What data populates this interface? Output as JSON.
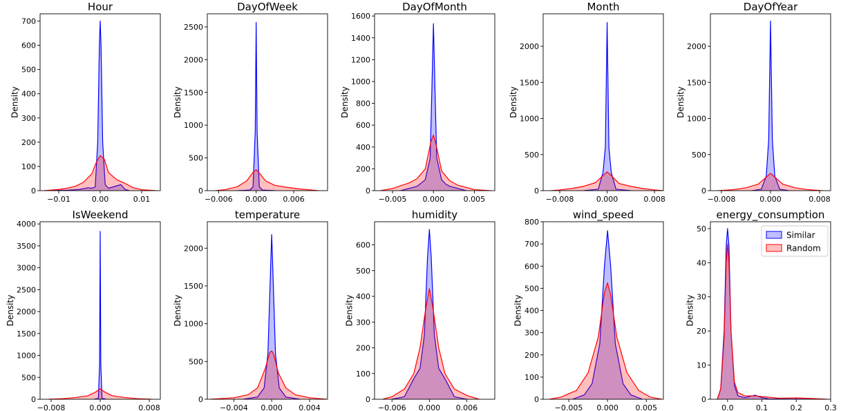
{
  "legend": {
    "placement": "top-right of energy_consumption panel",
    "entries": [
      {
        "label": "Similar",
        "color": "#0000ff"
      },
      {
        "label": "Random",
        "color": "#ff0000"
      }
    ]
  },
  "chart_data": [
    {
      "type": "area",
      "title": "Hour",
      "xlabel": "",
      "ylabel": "Density",
      "xlim": [
        -0.0145,
        0.0145
      ],
      "ylim": [
        0,
        730
      ],
      "xticks": [
        -0.01,
        0,
        0.01
      ],
      "xtick_labels": [
        "−0.01",
        "0.00",
        "0.01"
      ],
      "yticks": [
        0,
        100,
        200,
        300,
        400,
        500,
        600,
        700
      ],
      "ytick_labels": [
        "0",
        "100",
        "200",
        "300",
        "400",
        "500",
        "600",
        "700"
      ],
      "series": [
        {
          "name": "Similar",
          "x": [
            -0.013,
            -0.008,
            -0.005,
            -0.003,
            -0.002,
            -0.0012,
            -0.0006,
            -0.0002,
            0,
            0.0002,
            0.0006,
            0.0012,
            0.002,
            0.003,
            0.004,
            0.005,
            0.006,
            0.007
          ],
          "y": [
            0,
            2,
            5,
            12,
            10,
            15,
            200,
            600,
            700,
            600,
            200,
            25,
            10,
            15,
            20,
            25,
            5,
            0
          ]
        },
        {
          "name": "Random",
          "x": [
            -0.0135,
            -0.01,
            -0.008,
            -0.006,
            -0.004,
            -0.002,
            -0.001,
            0,
            0.001,
            0.002,
            0.004,
            0.006,
            0.008,
            0.01,
            0.0135
          ],
          "y": [
            0,
            5,
            10,
            18,
            35,
            70,
            115,
            145,
            130,
            75,
            45,
            30,
            12,
            4,
            0
          ]
        }
      ]
    },
    {
      "type": "area",
      "title": "DayOfWeek",
      "xlabel": "",
      "ylabel": "Density",
      "xlim": [
        -0.0078,
        0.0114
      ],
      "ylim": [
        0,
        2700
      ],
      "xticks": [
        -0.006,
        0,
        0.006
      ],
      "xtick_labels": [
        "−0.006",
        "0.000",
        "0.006"
      ],
      "yticks": [
        0,
        500,
        1000,
        1500,
        2000,
        2500
      ],
      "ytick_labels": [
        "0",
        "500",
        "1000",
        "1500",
        "2000",
        "2500"
      ],
      "series": [
        {
          "name": "Similar",
          "x": [
            -0.003,
            -0.001,
            -0.0005,
            -0.00015,
            0,
            0.00015,
            0.0005,
            0.001,
            0.003
          ],
          "y": [
            0,
            10,
            60,
            900,
            2570,
            900,
            60,
            10,
            0
          ]
        },
        {
          "name": "Random",
          "x": [
            -0.0065,
            -0.005,
            -0.003,
            -0.0015,
            -0.0005,
            0,
            0.0005,
            0.0015,
            0.003,
            0.005,
            0.007,
            0.01
          ],
          "y": [
            0,
            15,
            60,
            150,
            280,
            320,
            270,
            150,
            80,
            50,
            25,
            0
          ]
        }
      ]
    },
    {
      "type": "area",
      "title": "DayOfMonth",
      "xlabel": "",
      "ylabel": "Density",
      "xlim": [
        -0.0072,
        0.0075
      ],
      "ylim": [
        0,
        1620
      ],
      "xticks": [
        -0.005,
        0,
        0.005
      ],
      "xtick_labels": [
        "−0.005",
        "0.000",
        "0.005"
      ],
      "yticks": [
        0,
        200,
        400,
        600,
        800,
        1000,
        1200,
        1400,
        1600
      ],
      "ytick_labels": [
        "0",
        "200",
        "400",
        "600",
        "800",
        "1000",
        "1200",
        "1400",
        "1600"
      ],
      "series": [
        {
          "name": "Similar",
          "x": [
            -0.004,
            -0.002,
            -0.001,
            -0.0004,
            -0.0002,
            0,
            0.0002,
            0.0004,
            0.001,
            0.0015,
            0.002,
            0.004
          ],
          "y": [
            0,
            40,
            100,
            300,
            900,
            1530,
            900,
            300,
            100,
            60,
            40,
            0
          ]
        },
        {
          "name": "Random",
          "x": [
            -0.0065,
            -0.005,
            -0.003,
            -0.002,
            -0.001,
            -0.0003,
            0,
            0.0003,
            0.001,
            0.002,
            0.003,
            0.005,
            0.007
          ],
          "y": [
            0,
            20,
            70,
            110,
            200,
            450,
            510,
            430,
            180,
            90,
            50,
            10,
            0
          ]
        }
      ]
    },
    {
      "type": "area",
      "title": "Month",
      "xlabel": "",
      "ylabel": "Density",
      "xlim": [
        -0.0108,
        0.0095
      ],
      "ylim": [
        0,
        2450
      ],
      "xticks": [
        -0.008,
        0,
        0.008
      ],
      "xtick_labels": [
        "−0.008",
        "0.000",
        "0.008"
      ],
      "yticks": [
        0,
        500,
        1000,
        1500,
        2000
      ],
      "ytick_labels": [
        "0",
        "500",
        "1000",
        "1500",
        "2000"
      ],
      "series": [
        {
          "name": "Similar",
          "x": [
            -0.004,
            -0.0015,
            -0.0007,
            -0.0003,
            0,
            0.0003,
            0.0007,
            0.0015,
            0.004
          ],
          "y": [
            0,
            20,
            250,
            600,
            2330,
            600,
            250,
            20,
            0
          ]
        },
        {
          "name": "Random",
          "x": [
            -0.0095,
            -0.008,
            -0.006,
            -0.004,
            -0.002,
            -0.0008,
            0,
            0.0008,
            0.002,
            0.004,
            0.006,
            0.008,
            0.0095
          ],
          "y": [
            0,
            10,
            30,
            60,
            110,
            200,
            260,
            200,
            100,
            60,
            30,
            10,
            0
          ]
        }
      ]
    },
    {
      "type": "area",
      "title": "DayOfYear",
      "xlabel": "",
      "ylabel": "Density",
      "xlim": [
        -0.0098,
        0.0098
      ],
      "ylim": [
        0,
        2450
      ],
      "xticks": [
        -0.008,
        0,
        0.008
      ],
      "xtick_labels": [
        "−0.008",
        "0.000",
        "0.008"
      ],
      "yticks": [
        0,
        500,
        1000,
        1500,
        2000
      ],
      "ytick_labels": [
        "0",
        "500",
        "1000",
        "1500",
        "2000"
      ],
      "series": [
        {
          "name": "Similar",
          "x": [
            -0.003,
            -0.0015,
            -0.0007,
            -0.0003,
            0,
            0.0003,
            0.0007,
            0.0015,
            0.003
          ],
          "y": [
            0,
            20,
            200,
            700,
            2350,
            700,
            200,
            20,
            0
          ]
        },
        {
          "name": "Random",
          "x": [
            -0.0085,
            -0.006,
            -0.004,
            -0.002,
            -0.0008,
            0,
            0.0008,
            0.002,
            0.004,
            0.006,
            0.0085
          ],
          "y": [
            0,
            15,
            40,
            90,
            180,
            240,
            180,
            90,
            40,
            15,
            0
          ]
        }
      ]
    },
    {
      "type": "area",
      "title": "IsWeekend",
      "xlabel": "",
      "ylabel": "Density",
      "xlim": [
        -0.0098,
        0.0098
      ],
      "ylim": [
        0,
        4050
      ],
      "xticks": [
        -0.008,
        0,
        0.008
      ],
      "xtick_labels": [
        "−0.008",
        "0.000",
        "0.008"
      ],
      "yticks": [
        0,
        500,
        1000,
        1500,
        2000,
        2500,
        3000,
        3500,
        4000
      ],
      "ytick_labels": [
        "0",
        "500",
        "1000",
        "1500",
        "2000",
        "2500",
        "3000",
        "3500",
        "4000"
      ],
      "series": [
        {
          "name": "Similar",
          "x": [
            -0.001,
            -0.0003,
            -0.0001,
            0,
            0.0001,
            0.0003,
            0.001
          ],
          "y": [
            0,
            20,
            800,
            3830,
            800,
            20,
            0
          ]
        },
        {
          "name": "Random",
          "x": [
            -0.0085,
            -0.006,
            -0.004,
            -0.002,
            -0.0008,
            0,
            0.0008,
            0.002,
            0.004,
            0.006,
            0.0085
          ],
          "y": [
            0,
            15,
            40,
            80,
            160,
            240,
            160,
            80,
            40,
            15,
            0
          ]
        }
      ]
    },
    {
      "type": "area",
      "title": "temperature",
      "xlabel": "",
      "ylabel": "Density",
      "xlim": [
        -0.0068,
        0.0059
      ],
      "ylim": [
        0,
        2350
      ],
      "xticks": [
        -0.004,
        0,
        0.004
      ],
      "xtick_labels": [
        "−0.004",
        "0.000",
        "0.004"
      ],
      "yticks": [
        0,
        500,
        1000,
        1500,
        2000
      ],
      "ytick_labels": [
        "0",
        "500",
        "1000",
        "1500",
        "2000"
      ],
      "series": [
        {
          "name": "Similar",
          "x": [
            -0.003,
            -0.0015,
            -0.0008,
            -0.0004,
            -0.0001,
            0,
            0.0001,
            0.0004,
            0.0008,
            0.0015,
            0.003
          ],
          "y": [
            0,
            30,
            150,
            600,
            1800,
            2180,
            1800,
            600,
            150,
            30,
            0
          ]
        },
        {
          "name": "Random",
          "x": [
            -0.0065,
            -0.004,
            -0.0025,
            -0.0015,
            -0.0007,
            -0.0002,
            0,
            0.0002,
            0.0007,
            0.0015,
            0.0025,
            0.004,
            0.0058
          ],
          "y": [
            0,
            20,
            60,
            150,
            400,
            620,
            640,
            600,
            350,
            150,
            60,
            20,
            0
          ]
        }
      ]
    },
    {
      "type": "area",
      "title": "humidity",
      "xlabel": "",
      "ylabel": "Density",
      "xlim": [
        -0.0088,
        0.0105
      ],
      "ylim": [
        0,
        690
      ],
      "xticks": [
        -0.006,
        0,
        0.006
      ],
      "xtick_labels": [
        "−0.006",
        "0.000",
        "0.006"
      ],
      "yticks": [
        0,
        100,
        200,
        300,
        400,
        500,
        600
      ],
      "ytick_labels": [
        "0",
        "100",
        "200",
        "300",
        "400",
        "500",
        "600"
      ],
      "series": [
        {
          "name": "Similar",
          "x": [
            -0.006,
            -0.004,
            -0.0025,
            -0.0015,
            -0.0008,
            -0.0003,
            0,
            0.0003,
            0.0008,
            0.0015,
            0.0025,
            0.004,
            0.006
          ],
          "y": [
            0,
            10,
            80,
            120,
            250,
            550,
            660,
            550,
            250,
            120,
            80,
            10,
            0
          ]
        },
        {
          "name": "Random",
          "x": [
            -0.0075,
            -0.006,
            -0.004,
            -0.0025,
            -0.0015,
            -0.0006,
            0,
            0.0006,
            0.0015,
            0.0025,
            0.004,
            0.006,
            0.008
          ],
          "y": [
            0,
            10,
            40,
            100,
            200,
            350,
            430,
            350,
            200,
            100,
            40,
            15,
            0
          ]
        }
      ]
    },
    {
      "type": "area",
      "title": "wind_speed",
      "xlabel": "",
      "ylabel": "Density",
      "xlim": [
        -0.0083,
        0.0072
      ],
      "ylim": [
        0,
        800
      ],
      "xticks": [
        -0.005,
        0,
        0.005
      ],
      "xtick_labels": [
        "−0.005",
        "0.000",
        "0.005"
      ],
      "yticks": [
        0,
        100,
        200,
        300,
        400,
        500,
        600,
        700,
        800
      ],
      "ytick_labels": [
        "0",
        "100",
        "200",
        "300",
        "400",
        "500",
        "600",
        "700",
        "800"
      ],
      "series": [
        {
          "name": "Similar",
          "x": [
            -0.0045,
            -0.003,
            -0.002,
            -0.001,
            -0.0004,
            0,
            0.0004,
            0.001,
            0.002,
            0.003,
            0.0045
          ],
          "y": [
            0,
            20,
            70,
            250,
            600,
            760,
            600,
            250,
            70,
            20,
            0
          ]
        },
        {
          "name": "Random",
          "x": [
            -0.0075,
            -0.006,
            -0.004,
            -0.0025,
            -0.0012,
            -0.0004,
            0,
            0.0004,
            0.0012,
            0.0025,
            0.004,
            0.0055,
            0.007
          ],
          "y": [
            0,
            10,
            40,
            120,
            280,
            480,
            525,
            470,
            280,
            120,
            40,
            10,
            0
          ]
        }
      ]
    },
    {
      "type": "area",
      "title": "energy_consumption",
      "xlabel": "",
      "ylabel": "Density",
      "xlim": [
        -0.05,
        0.3
      ],
      "ylim": [
        0,
        52
      ],
      "xticks": [
        0,
        0.1,
        0.2,
        0.3
      ],
      "xtick_labels": [
        "0.0",
        "0.1",
        "0.2",
        "0.3"
      ],
      "yticks": [
        0,
        10,
        20,
        30,
        40,
        50
      ],
      "ytick_labels": [
        "0",
        "10",
        "20",
        "30",
        "40",
        "50"
      ],
      "series": [
        {
          "name": "Similar",
          "x": [
            -0.03,
            -0.02,
            -0.01,
            -0.004,
            0,
            0.004,
            0.01,
            0.02,
            0.03,
            0.05,
            0.08,
            0.1,
            0.12,
            0.29
          ],
          "y": [
            0,
            3,
            20,
            45,
            50,
            45,
            20,
            4,
            1,
            0.5,
            1.2,
            0.5,
            0.1,
            0
          ]
        },
        {
          "name": "Random",
          "x": [
            -0.03,
            -0.02,
            -0.01,
            -0.004,
            0,
            0.004,
            0.01,
            0.02,
            0.03,
            0.05,
            0.08,
            0.1,
            0.15,
            0.2,
            0.25,
            0.29
          ],
          "y": [
            0,
            3,
            18,
            40,
            45.5,
            40,
            20,
            5,
            2,
            1,
            1,
            0.8,
            0.3,
            0.4,
            0.2,
            0
          ]
        }
      ]
    }
  ]
}
